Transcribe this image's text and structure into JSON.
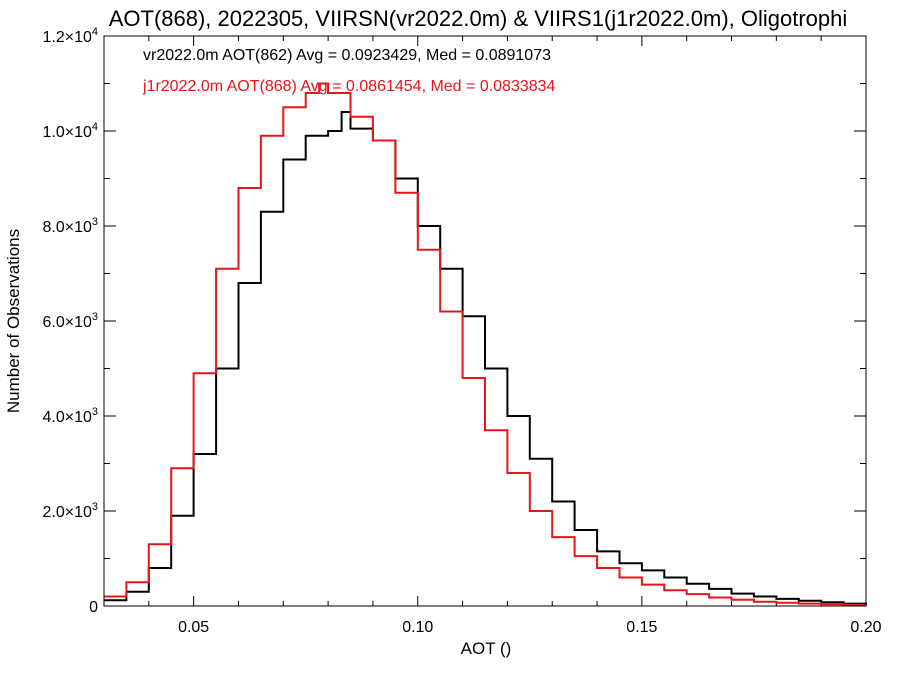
{
  "chart_data": {
    "type": "line",
    "title": "AOT(868), 2022305, VIIRSN(vr2022.0m) & VIIRS1(j1r2022.0m), Oligotrophi",
    "xlabel": "AOT ()",
    "ylabel": "Number of Observations",
    "xlim": [
      0.03,
      0.2
    ],
    "ylim": [
      0,
      12000
    ],
    "x_ticks": [
      {
        "value": 0.05,
        "label": "0.05"
      },
      {
        "value": 0.1,
        "label": "0.10"
      },
      {
        "value": 0.15,
        "label": "0.15"
      },
      {
        "value": 0.2,
        "label": "0.20"
      }
    ],
    "y_ticks": [
      {
        "value": 0,
        "mant": "0",
        "exp": ""
      },
      {
        "value": 2000,
        "mant": "2.0×10",
        "exp": "3"
      },
      {
        "value": 4000,
        "mant": "4.0×10",
        "exp": "3"
      },
      {
        "value": 6000,
        "mant": "6.0×10",
        "exp": "3"
      },
      {
        "value": 8000,
        "mant": "8.0×10",
        "exp": "3"
      },
      {
        "value": 10000,
        "mant": "1.0×10",
        "exp": "4"
      },
      {
        "value": 12000,
        "mant": "1.2×10",
        "exp": "4"
      }
    ],
    "legend": [
      {
        "text": "vr2022.0m AOT(862) Avg = 0.0923429, Med = 0.0891073",
        "color": "#000000"
      },
      {
        "text": "j1r2022.0m AOT(868) Avg = 0.0861454, Med = 0.0833834",
        "color": "#e8141b"
      }
    ],
    "series": [
      {
        "color": "#000000",
        "step": "histogram",
        "x": [
          0.03,
          0.035,
          0.04,
          0.045,
          0.05,
          0.055,
          0.06,
          0.065,
          0.07,
          0.075,
          0.08,
          0.083,
          0.085,
          0.09,
          0.095,
          0.1,
          0.105,
          0.11,
          0.115,
          0.12,
          0.125,
          0.13,
          0.135,
          0.14,
          0.145,
          0.15,
          0.155,
          0.16,
          0.165,
          0.17,
          0.175,
          0.18,
          0.185,
          0.19,
          0.195,
          0.2
        ],
        "y": [
          120,
          300,
          800,
          1900,
          3200,
          5000,
          6800,
          8300,
          9400,
          9900,
          10000,
          10400,
          10050,
          9800,
          9000,
          8000,
          7100,
          6100,
          5000,
          4000,
          3100,
          2200,
          1600,
          1150,
          900,
          750,
          600,
          470,
          360,
          260,
          200,
          150,
          110,
          80,
          50,
          30
        ]
      },
      {
        "color": "#e8141b",
        "step": "histogram",
        "x": [
          0.03,
          0.035,
          0.04,
          0.045,
          0.05,
          0.055,
          0.06,
          0.065,
          0.07,
          0.075,
          0.078,
          0.08,
          0.085,
          0.09,
          0.095,
          0.1,
          0.105,
          0.11,
          0.115,
          0.12,
          0.125,
          0.13,
          0.135,
          0.14,
          0.145,
          0.15,
          0.155,
          0.16,
          0.165,
          0.17,
          0.175,
          0.18,
          0.185,
          0.19,
          0.195,
          0.2
        ],
        "y": [
          200,
          500,
          1300,
          2900,
          4900,
          7100,
          8800,
          9900,
          10500,
          10800,
          11000,
          10800,
          10300,
          9800,
          8700,
          7500,
          6200,
          4800,
          3700,
          2800,
          2000,
          1450,
          1050,
          800,
          600,
          450,
          330,
          250,
          180,
          130,
          90,
          70,
          50,
          35,
          25,
          15
        ]
      }
    ]
  }
}
